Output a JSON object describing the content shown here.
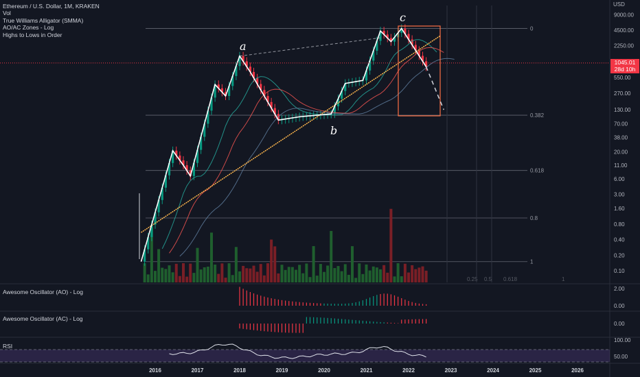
{
  "legend": {
    "symbol": "Ethereum / U.S. Dollar, 1M, KRAKEN",
    "vol": "Vol",
    "alligator": "True Williams Alligator (SMMA)",
    "zones": "AO/AC Zones - Log",
    "highs": "Highs to Lows in Order"
  },
  "axis_unit": "USD",
  "price_ticks": [
    "9000.00",
    "4500.00",
    "2250.00",
    "1100.00",
    "550.00",
    "270.00",
    "130.00",
    "70.00",
    "38.00",
    "20.00",
    "11.00",
    "6.00",
    "3.00",
    "1.60",
    "0.80",
    "0.40",
    "0.20",
    "0.10"
  ],
  "current_price": {
    "value": "1045.01",
    "countdown": "28d 10h"
  },
  "fib_labels": [
    {
      "level": "0",
      "price": 4850
    },
    {
      "level": "0.382",
      "price": 102
    },
    {
      "level": "0.618",
      "price": 8.7
    },
    {
      "level": "0.8",
      "price": 1.05
    },
    {
      "level": "1",
      "price": 0.15
    }
  ],
  "fib_ext_labels": [
    "0.25",
    "0.5",
    "0.618",
    "1"
  ],
  "wave_labels": {
    "a": "a",
    "b": "b",
    "c": "c"
  },
  "time_ticks": [
    "2016",
    "2017",
    "2018",
    "2019",
    "2020",
    "2021",
    "2022",
    "2023",
    "2024",
    "2025",
    "2026"
  ],
  "panes": {
    "ao": {
      "title": "Awesome Oscillator (AO) - Log",
      "ticks": [
        "2.00",
        "0.00"
      ]
    },
    "ac": {
      "title": "Awesome Oscillator (AC) - Log",
      "ticks": [
        "0.00"
      ]
    },
    "rsi": {
      "title": "RSI",
      "ticks": [
        "100.00",
        "50.00"
      ]
    }
  },
  "colors": {
    "up": "#089981",
    "down": "#f23645",
    "wave": "#ffffff",
    "trend": "#ffb74d",
    "box": "#ff7043",
    "lips": "#26a69a",
    "teeth": "#ef5350",
    "jaw": "#5d7a9a",
    "rsi": "#e0e3eb"
  },
  "chart_data": {
    "type": "line",
    "log_scale": true,
    "grid": false,
    "title": "",
    "x_range": [
      "2015-08",
      "2026-06"
    ],
    "wave_path": [
      {
        "t": "2015-09",
        "price": 0.15
      },
      {
        "t": "2016-06",
        "price": 21
      },
      {
        "t": "2016-09",
        "price": 11
      },
      {
        "t": "2016-11",
        "price": 6.8
      },
      {
        "t": "2017-06",
        "price": 400
      },
      {
        "t": "2017-09",
        "price": 240
      },
      {
        "t": "2018-01",
        "price": 1420
      },
      {
        "t": "2018-04",
        "price": 700
      },
      {
        "t": "2018-12",
        "price": 82
      },
      {
        "t": "2019-06",
        "price": 95
      },
      {
        "t": "2020-03",
        "price": 108
      },
      {
        "t": "2020-07",
        "price": 420
      },
      {
        "t": "2020-12",
        "price": 480
      },
      {
        "t": "2021-05",
        "price": 4350
      },
      {
        "t": "2021-08",
        "price": 2700
      },
      {
        "t": "2021-11",
        "price": 4850
      },
      {
        "t": "2022-06",
        "price": 880
      }
    ],
    "projection": [
      {
        "t": "2022-06",
        "price": 880
      },
      {
        "t": "2022-11",
        "price": 130
      }
    ],
    "trendline": [
      {
        "t": "2015-09",
        "price": 0.55
      },
      {
        "t": "2022-10",
        "price": 3500
      }
    ],
    "current_price": 1045.01
  }
}
